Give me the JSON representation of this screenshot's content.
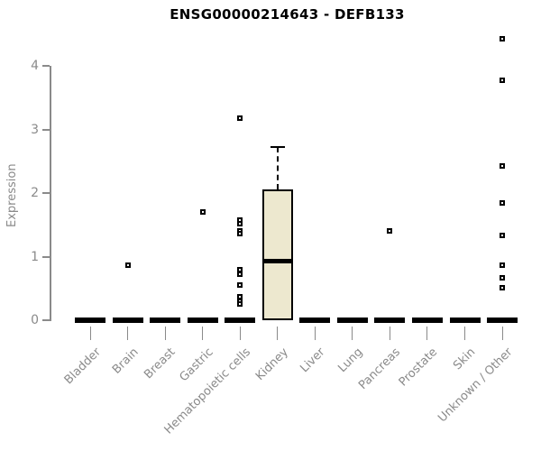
{
  "header": {
    "title": "ENSG00000214643 - DEFB133"
  },
  "chart_data": {
    "type": "boxplot",
    "title": "ENSG00000214643 - DEFB133",
    "xlabel": "",
    "ylabel": "Expression",
    "ylim": [
      0,
      4
    ],
    "yticks": [
      0,
      1,
      2,
      3,
      4
    ],
    "grid": false,
    "legend": "none",
    "categories": [
      "Bladder",
      "Brain",
      "Breast",
      "Gastric",
      "Hematopoietic cells",
      "Kidney",
      "Liver",
      "Lung",
      "Pancreas",
      "Prostate",
      "Skin",
      "Unknown / Other"
    ],
    "boxes": [
      {
        "category": "Bladder",
        "q1": 0,
        "median": 0,
        "q3": 0,
        "whisker_low": 0,
        "whisker_high": 0,
        "outliers": []
      },
      {
        "category": "Brain",
        "q1": 0,
        "median": 0,
        "q3": 0,
        "whisker_low": 0,
        "whisker_high": 0,
        "outliers": [
          0.87
        ]
      },
      {
        "category": "Breast",
        "q1": 0,
        "median": 0,
        "q3": 0,
        "whisker_low": 0,
        "whisker_high": 0,
        "outliers": []
      },
      {
        "category": "Gastric",
        "q1": 0,
        "median": 0,
        "q3": 0,
        "whisker_low": 0,
        "whisker_high": 0,
        "outliers": [
          1.7
        ]
      },
      {
        "category": "Hematopoietic cells",
        "q1": 0,
        "median": 0,
        "q3": 0,
        "whisker_low": 0,
        "whisker_high": 0,
        "outliers": [
          3.18,
          1.57,
          1.52,
          1.41,
          1.36,
          0.79,
          0.72,
          0.56,
          0.37,
          0.3,
          0.26
        ]
      },
      {
        "category": "Kidney",
        "q1": 0,
        "median": 0.94,
        "q3": 2.06,
        "whisker_low": 0,
        "whisker_high": 2.72,
        "outliers": []
      },
      {
        "category": "Liver",
        "q1": 0,
        "median": 0,
        "q3": 0,
        "whisker_low": 0,
        "whisker_high": 0,
        "outliers": []
      },
      {
        "category": "Lung",
        "q1": 0,
        "median": 0,
        "q3": 0,
        "whisker_low": 0,
        "whisker_high": 0,
        "outliers": []
      },
      {
        "category": "Pancreas",
        "q1": 0,
        "median": 0,
        "q3": 0,
        "whisker_low": 0,
        "whisker_high": 0,
        "outliers": [
          1.4
        ]
      },
      {
        "category": "Prostate",
        "q1": 0,
        "median": 0,
        "q3": 0,
        "whisker_low": 0,
        "whisker_high": 0,
        "outliers": []
      },
      {
        "category": "Skin",
        "q1": 0,
        "median": 0,
        "q3": 0,
        "whisker_low": 0,
        "whisker_high": 0,
        "outliers": []
      },
      {
        "category": "Unknown / Other",
        "q1": 0,
        "median": 0,
        "q3": 0,
        "whisker_low": 0,
        "whisker_high": 0,
        "outliers": [
          4.43,
          3.77,
          2.43,
          1.84,
          1.34,
          0.87,
          0.67,
          0.51
        ]
      }
    ],
    "colors": {
      "box_fill": "#ede8cf",
      "box_line": "#000000",
      "median": "#000000",
      "outlier": "#000000",
      "axis": "#8a8a8a",
      "tick_label": "#8a8a8a",
      "title": "#000000",
      "background": "#ffffff"
    }
  }
}
